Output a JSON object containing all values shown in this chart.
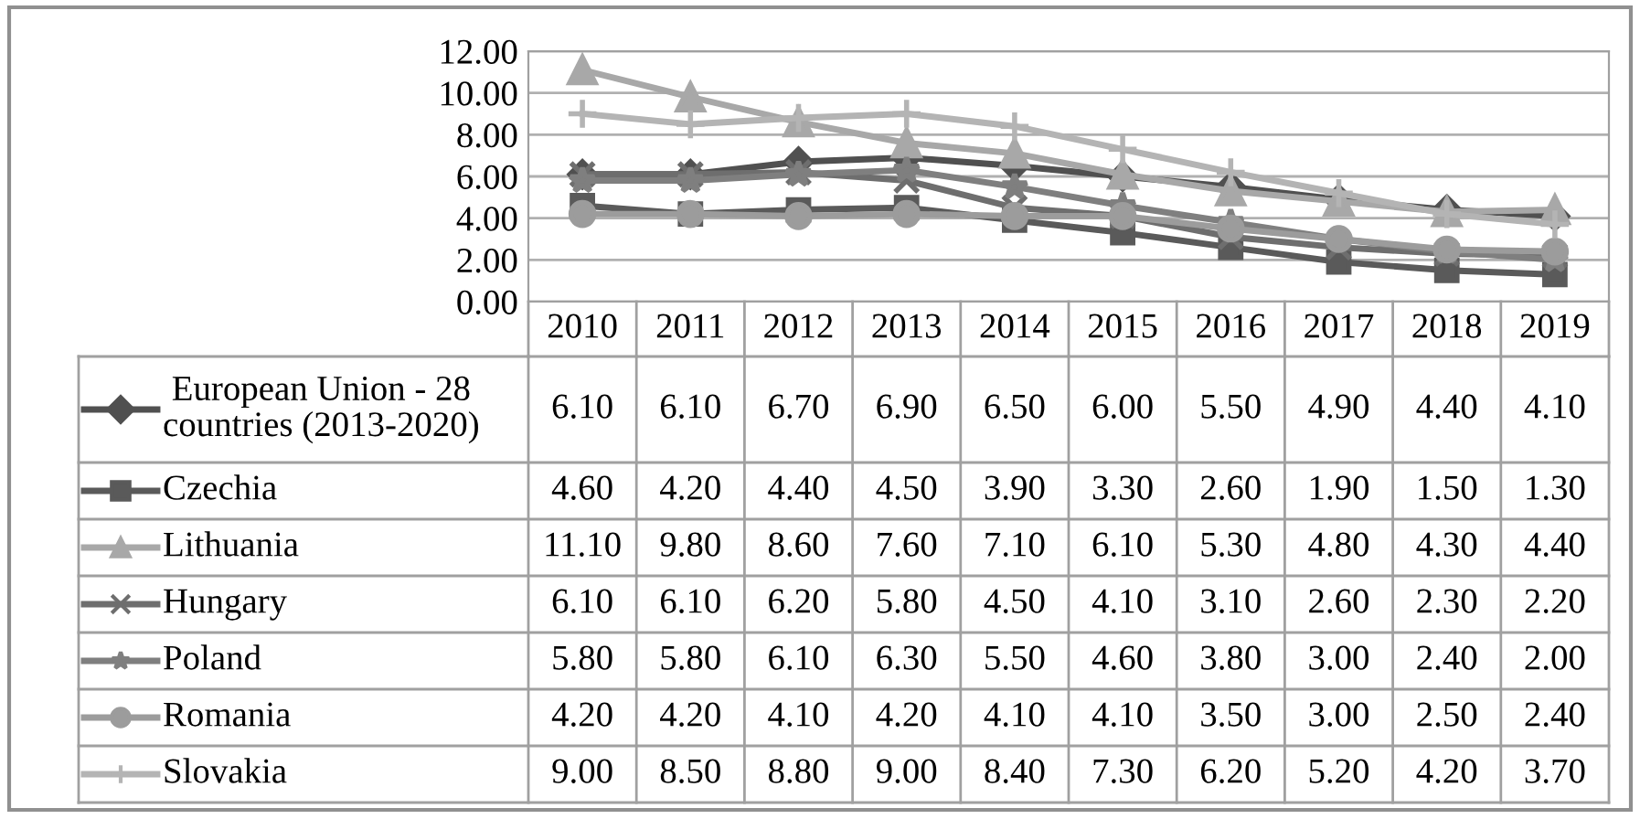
{
  "chart_data": {
    "type": "line",
    "categories": [
      "2010",
      "2011",
      "2012",
      "2013",
      "2014",
      "2015",
      "2016",
      "2017",
      "2018",
      "2019"
    ],
    "series": [
      {
        "name": "European Union - 28\ncountries (2013-2020)",
        "color": "#505050",
        "marker": "diamond",
        "values": [
          6.1,
          6.1,
          6.7,
          6.9,
          6.5,
          6.0,
          5.5,
          4.9,
          4.4,
          4.1
        ],
        "value_labels": [
          "6.10",
          "6.10",
          "6.70",
          "6.90",
          "6.50",
          "6.00",
          "5.50",
          "4.90",
          "4.40",
          "4.10"
        ]
      },
      {
        "name": "Czechia",
        "color": "#5a5a5a",
        "marker": "square",
        "values": [
          4.6,
          4.2,
          4.4,
          4.5,
          3.9,
          3.3,
          2.6,
          1.9,
          1.5,
          1.3
        ],
        "value_labels": [
          "4.60",
          "4.20",
          "4.40",
          "4.50",
          "3.90",
          "3.30",
          "2.60",
          "1.90",
          "1.50",
          "1.30"
        ]
      },
      {
        "name": "Lithuania",
        "color": "#a8a8a8",
        "marker": "triangle",
        "values": [
          11.1,
          9.8,
          8.6,
          7.6,
          7.1,
          6.1,
          5.3,
          4.8,
          4.3,
          4.4
        ],
        "value_labels": [
          "11.10",
          "9.80",
          "8.60",
          "7.60",
          "7.10",
          "6.10",
          "5.30",
          "4.80",
          "4.30",
          "4.40"
        ]
      },
      {
        "name": "Hungary",
        "color": "#6e6e6e",
        "marker": "cross",
        "values": [
          6.1,
          6.1,
          6.2,
          5.8,
          4.5,
          4.1,
          3.1,
          2.6,
          2.3,
          2.2
        ],
        "value_labels": [
          "6.10",
          "6.10",
          "6.20",
          "5.80",
          "4.50",
          "4.10",
          "3.10",
          "2.60",
          "2.30",
          "2.20"
        ]
      },
      {
        "name": "Poland",
        "color": "#7f7f7f",
        "marker": "star",
        "values": [
          5.8,
          5.8,
          6.1,
          6.3,
          5.5,
          4.6,
          3.8,
          3.0,
          2.4,
          2.0
        ],
        "value_labels": [
          "5.80",
          "5.80",
          "6.10",
          "6.30",
          "5.50",
          "4.60",
          "3.80",
          "3.00",
          "2.40",
          "2.00"
        ]
      },
      {
        "name": "Romania",
        "color": "#9c9c9c",
        "marker": "circle",
        "values": [
          4.2,
          4.2,
          4.1,
          4.2,
          4.1,
          4.1,
          3.5,
          3.0,
          2.5,
          2.4
        ],
        "value_labels": [
          "4.20",
          "4.20",
          "4.10",
          "4.20",
          "4.10",
          "4.10",
          "3.50",
          "3.00",
          "2.50",
          "2.40"
        ]
      },
      {
        "name": "Slovakia",
        "color": "#b4b4b4",
        "marker": "plus",
        "values": [
          9.0,
          8.5,
          8.8,
          9.0,
          8.4,
          7.3,
          6.2,
          5.2,
          4.2,
          3.7
        ],
        "value_labels": [
          "9.00",
          "8.50",
          "8.80",
          "9.00",
          "8.40",
          "7.30",
          "6.20",
          "5.20",
          "4.20",
          "3.70"
        ]
      }
    ],
    "ylim": [
      0,
      12
    ],
    "yticks": [
      {
        "value": 0,
        "label": "0.00"
      },
      {
        "value": 2,
        "label": "2.00"
      },
      {
        "value": 4,
        "label": "4.00"
      },
      {
        "value": 6,
        "label": "6.00"
      },
      {
        "value": 8,
        "label": "8.00"
      },
      {
        "value": 10,
        "label": "10.00"
      },
      {
        "value": 12,
        "label": "12.00"
      }
    ],
    "grid": "y",
    "legend": "bottom"
  }
}
